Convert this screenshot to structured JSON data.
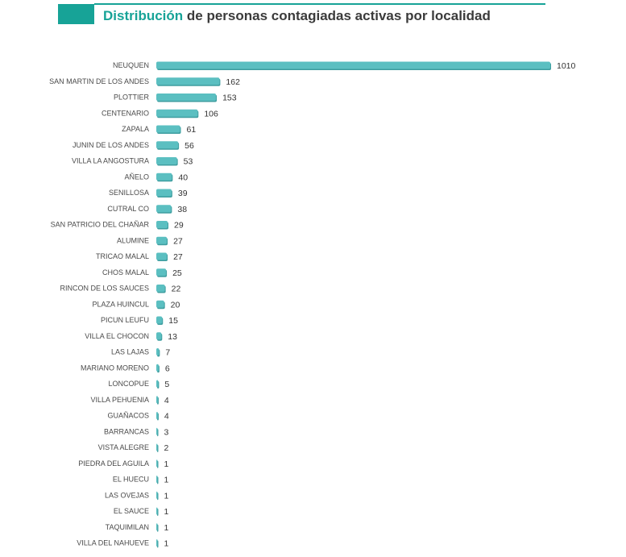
{
  "title": {
    "accent": "Distribución",
    "rest": " de personas contagiadas activas por localidad"
  },
  "colors": {
    "accent": "#17a397",
    "bar": "#5bbfc1",
    "bar_shadow": "#3f9ea0"
  },
  "chart_data": {
    "type": "bar",
    "orientation": "horizontal",
    "title": "Distribución de personas contagiadas activas por localidad",
    "categories": [
      "NEUQUEN",
      "SAN MARTIN DE LOS ANDES",
      "PLOTTIER",
      "CENTENARIO",
      "ZAPALA",
      "JUNIN DE LOS ANDES",
      "VILLA LA ANGOSTURA",
      "AÑELO",
      "SENILLOSA",
      "CUTRAL CO",
      "SAN PATRICIO DEL CHAÑAR",
      "ALUMINE",
      "TRICAO MALAL",
      "CHOS MALAL",
      "RINCON DE LOS SAUCES",
      "PLAZA HUINCUL",
      "PICUN LEUFU",
      "VILLA EL CHOCON",
      "LAS LAJAS",
      "MARIANO MORENO",
      "LONCOPUE",
      "VILLA PEHUENIA",
      "GUAÑACOS",
      "BARRANCAS",
      "VISTA ALEGRE",
      "PIEDRA DEL AGUILA",
      "EL HUECU",
      "LAS OVEJAS",
      "EL SAUCE",
      "TAQUIMILAN",
      "VILLA DEL NAHUEVE"
    ],
    "values": [
      1010,
      162,
      153,
      106,
      61,
      56,
      53,
      40,
      39,
      38,
      29,
      27,
      27,
      25,
      22,
      20,
      15,
      13,
      7,
      6,
      5,
      4,
      4,
      3,
      2,
      1,
      1,
      1,
      1,
      1,
      1
    ],
    "xlim": [
      0,
      1010
    ],
    "grid": false,
    "legend": "none",
    "data_labels": true
  }
}
